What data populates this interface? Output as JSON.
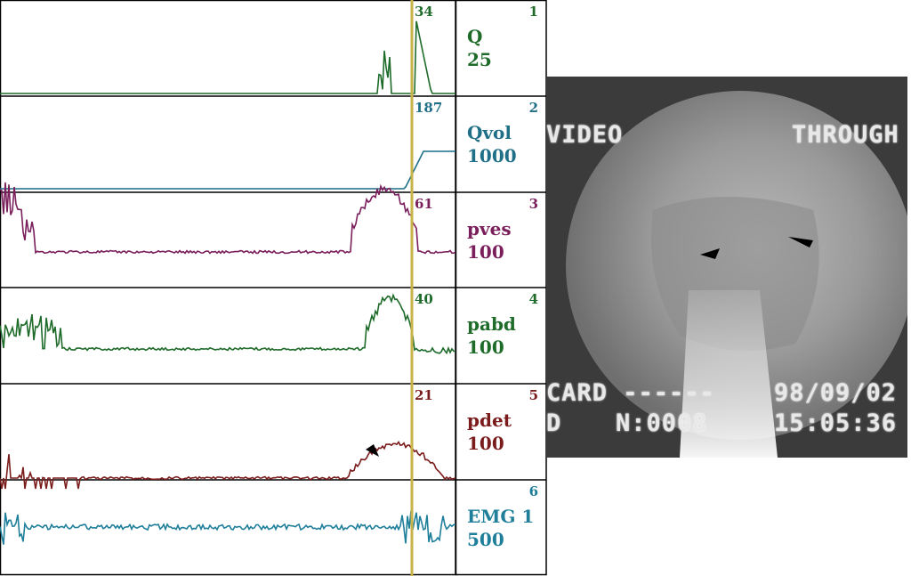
{
  "chart_data": {
    "type": "line",
    "channels": [
      {
        "index": "1",
        "name": "Q",
        "scale": "25",
        "marker_value": "34",
        "color": "#1e6b2a"
      },
      {
        "index": "2",
        "name": "Qvol",
        "scale": "1000",
        "marker_value": "187",
        "color": "#1f6f87"
      },
      {
        "index": "3",
        "name": "pves",
        "scale": "100",
        "marker_value": "61",
        "color": "#7a1f5c"
      },
      {
        "index": "4",
        "name": "pabd",
        "scale": "100",
        "marker_value": "40",
        "color": "#1e6b2a"
      },
      {
        "index": "5",
        "name": "pdet",
        "scale": "100",
        "marker_value": "21",
        "color": "#7a1c1c"
      },
      {
        "index": "6",
        "name": "EMG 1",
        "scale": "500",
        "marker_value": "",
        "color": "#1f7f9a"
      }
    ],
    "marker_color": "#c8b24a",
    "grid": false,
    "legend": "right"
  },
  "video": {
    "osd_left": "VIDEO",
    "osd_right": "THROUGH",
    "osd_card": "CARD ------",
    "osd_mode": "D",
    "osd_number": "N:0008",
    "osd_date": "98/09/02",
    "osd_time": "15:05:36"
  }
}
